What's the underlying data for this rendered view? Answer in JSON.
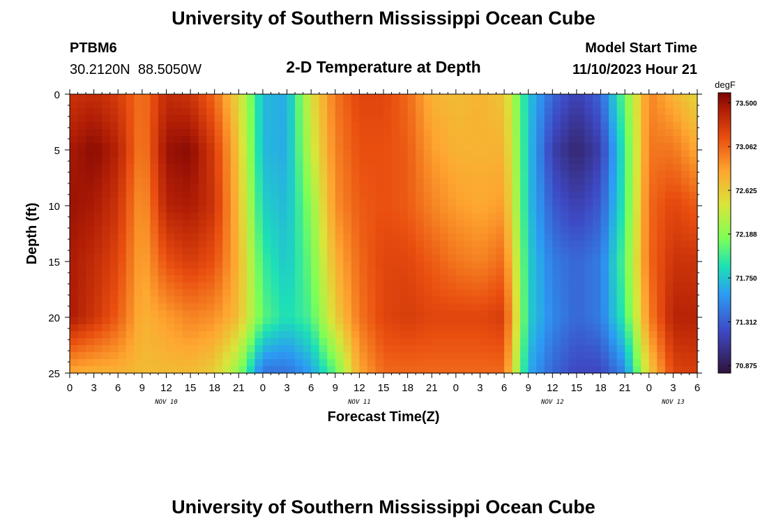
{
  "page": {
    "title": "University of Southern Mississippi Ocean Cube",
    "footer_title": "University of Southern Mississippi Ocean Cube",
    "station_id": "PTBM6",
    "station_coords": "30.2120N  88.5050W",
    "model_start_label": "Model Start Time",
    "model_start_value": "11/10/2023 Hour 21"
  },
  "chart_data": {
    "type": "heatmap",
    "title": "2-D Temperature at Depth",
    "xlabel": "Forecast Time(Z)",
    "ylabel": "Depth (ft)",
    "x_range_hours": [
      0,
      78
    ],
    "ylim": [
      0,
      25
    ],
    "y_ticks": [
      0,
      5,
      10,
      15,
      20,
      25
    ],
    "x_tick_labels": [
      "0",
      "3",
      "6",
      "9",
      "12",
      "15",
      "18",
      "21",
      "0",
      "3",
      "6",
      "9",
      "12",
      "15",
      "18",
      "21",
      "0",
      "3",
      "6",
      "9",
      "12",
      "15",
      "18",
      "21",
      "0",
      "3",
      "6"
    ],
    "date_labels": [
      {
        "label": "NOV 10",
        "hour": 12
      },
      {
        "label": "NOV 11",
        "hour": 36
      },
      {
        "label": "NOV 12",
        "hour": 60
      },
      {
        "label": "NOV 13",
        "hour": 75
      }
    ],
    "colorbar": {
      "unit": "degF",
      "min": 70.8,
      "max": 73.6,
      "tick_values": [
        73.5,
        73.062,
        72.625,
        72.188,
        71.75,
        71.312,
        70.875
      ],
      "tick_labels": [
        "73.500",
        "73.062",
        "72.625",
        "72.188",
        "71.750",
        "71.312",
        "70.875"
      ]
    },
    "hours": [
      0,
      3,
      6,
      9,
      12,
      15,
      18,
      21,
      24,
      27,
      30,
      33,
      36,
      39,
      42,
      45,
      48,
      51,
      54,
      57,
      60,
      63,
      66,
      69,
      72,
      75,
      78
    ],
    "depths_ft": [
      0,
      5,
      10,
      15,
      20,
      25
    ],
    "values_degF": [
      [
        73.3,
        73.45,
        73.5,
        73.45,
        73.45,
        72.8
      ],
      [
        73.35,
        73.55,
        73.45,
        73.35,
        73.3,
        72.75
      ],
      [
        73.25,
        73.4,
        73.3,
        73.2,
        73.1,
        72.75
      ],
      [
        73.0,
        72.95,
        72.85,
        72.8,
        72.75,
        72.7
      ],
      [
        73.35,
        73.5,
        73.4,
        73.15,
        72.85,
        72.7
      ],
      [
        73.3,
        73.55,
        73.45,
        73.25,
        72.95,
        72.7
      ],
      [
        73.05,
        73.25,
        73.3,
        73.15,
        72.9,
        72.6
      ],
      [
        72.55,
        72.65,
        72.7,
        72.75,
        72.7,
        72.2
      ],
      [
        71.7,
        71.7,
        71.8,
        71.95,
        72.05,
        71.4
      ],
      [
        71.65,
        71.65,
        71.7,
        71.75,
        71.85,
        71.4
      ],
      [
        72.5,
        72.4,
        72.2,
        72.1,
        72.0,
        71.6
      ],
      [
        73.0,
        72.95,
        72.9,
        72.75,
        72.6,
        72.05
      ],
      [
        73.2,
        73.15,
        73.1,
        73.05,
        73.0,
        72.8
      ],
      [
        73.2,
        73.15,
        73.15,
        73.2,
        73.2,
        73.05
      ],
      [
        73.05,
        73.1,
        73.1,
        73.2,
        73.25,
        73.05
      ],
      [
        72.75,
        72.85,
        72.95,
        73.1,
        73.2,
        73.05
      ],
      [
        72.7,
        72.75,
        72.85,
        73.0,
        73.2,
        73.05
      ],
      [
        72.75,
        72.75,
        72.8,
        72.95,
        73.2,
        73.05
      ],
      [
        72.65,
        72.75,
        72.85,
        73.05,
        73.25,
        73.05
      ],
      [
        71.75,
        71.75,
        71.75,
        71.8,
        71.8,
        71.65
      ],
      [
        71.35,
        71.15,
        71.3,
        71.45,
        71.5,
        71.35
      ],
      [
        71.15,
        70.95,
        71.15,
        71.35,
        71.35,
        71.2
      ],
      [
        71.35,
        71.15,
        71.3,
        71.45,
        71.45,
        71.2
      ],
      [
        72.1,
        71.95,
        71.95,
        72.05,
        71.95,
        71.5
      ],
      [
        72.95,
        73.0,
        73.05,
        73.05,
        72.95,
        72.6
      ],
      [
        72.75,
        73.0,
        73.2,
        73.3,
        73.4,
        73.2
      ],
      [
        72.55,
        72.8,
        73.1,
        73.3,
        73.4,
        73.25
      ]
    ]
  }
}
